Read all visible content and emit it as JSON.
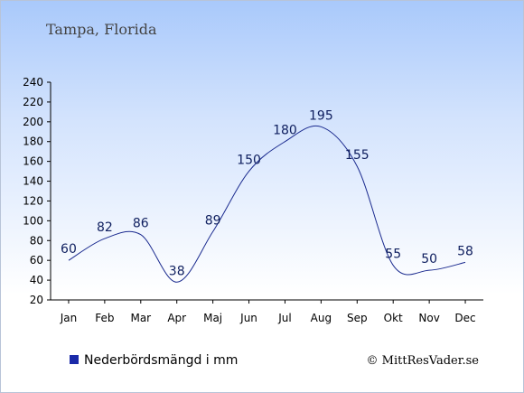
{
  "colors": {
    "line": "#1b2b8f",
    "legend_swatch": "#1a2aa8",
    "axis": "#000000"
  },
  "chart_data": {
    "type": "line",
    "title": "Tampa, Florida",
    "categories": [
      "Jan",
      "Feb",
      "Mar",
      "Apr",
      "Maj",
      "Jun",
      "Jul",
      "Aug",
      "Sep",
      "Okt",
      "Nov",
      "Dec"
    ],
    "series": [
      {
        "name": "Nederbördsmängd i mm",
        "values": [
          60,
          82,
          86,
          38,
          89,
          150,
          180,
          195,
          155,
          55,
          50,
          58
        ]
      }
    ],
    "ylim": [
      20,
      240
    ],
    "yticks": [
      20,
      40,
      60,
      80,
      100,
      120,
      140,
      160,
      180,
      200,
      220,
      240
    ],
    "grid": false,
    "legend_position": "bottom-left",
    "xlabel": "",
    "ylabel": ""
  },
  "credit": "© MittResVader.se"
}
